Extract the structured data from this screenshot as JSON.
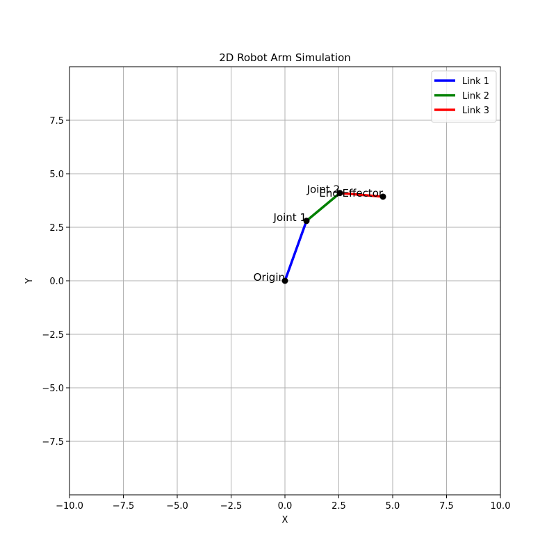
{
  "chart_data": {
    "type": "line",
    "title": "2D Robot Arm Simulation",
    "xlabel": "X",
    "ylabel": "Y",
    "xlim": [
      -10,
      10
    ],
    "ylim": [
      -10,
      10
    ],
    "x_ticks": [
      -10.0,
      -7.5,
      -5.0,
      -2.5,
      0.0,
      2.5,
      5.0,
      7.5,
      10.0
    ],
    "x_tick_labels": [
      "−10.0",
      "−7.5",
      "−5.0",
      "−2.5",
      "0.0",
      "2.5",
      "5.0",
      "7.5",
      "10.0"
    ],
    "y_ticks": [
      -7.5,
      -5.0,
      -2.5,
      0.0,
      2.5,
      5.0,
      7.5
    ],
    "y_tick_labels": [
      "−7.5",
      "−5.0",
      "−2.5",
      "0.0",
      "2.5",
      "5.0",
      "7.5"
    ],
    "grid": true,
    "legend_position": "top-right",
    "series": [
      {
        "name": "Link 1",
        "color": "#0000ff",
        "x": [
          0.0,
          1.0
        ],
        "y": [
          0.0,
          2.8
        ]
      },
      {
        "name": "Link 2",
        "color": "#008000",
        "x": [
          1.0,
          2.55
        ],
        "y": [
          2.8,
          4.1
        ]
      },
      {
        "name": "Link 3",
        "color": "#ff0000",
        "x": [
          2.55,
          4.55
        ],
        "y": [
          4.1,
          3.93
        ]
      }
    ],
    "points": [
      {
        "label": "Origin",
        "x": 0.0,
        "y": 0.0
      },
      {
        "label": "Joint 1",
        "x": 1.0,
        "y": 2.8
      },
      {
        "label": "Joint 2",
        "x": 2.55,
        "y": 4.1
      },
      {
        "label": "End Effector",
        "x": 4.55,
        "y": 3.93
      }
    ]
  }
}
